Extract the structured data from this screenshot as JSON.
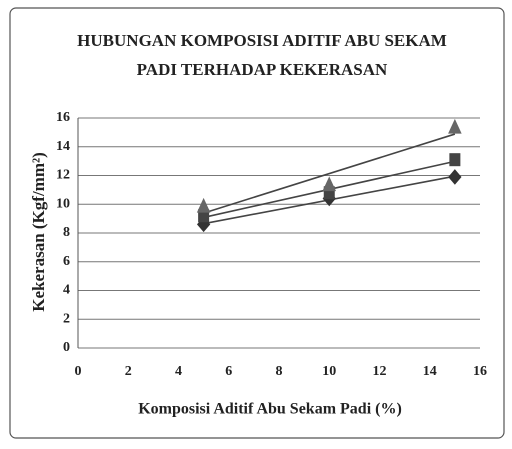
{
  "chart_data": {
    "type": "scatter",
    "title": [
      "HUBUNGAN KOMPOSISI ADITIF ABU SEKAM",
      "PADI TERHADAP KEKERASAN"
    ],
    "x_label": "Komposisi Aditif Abu Sekam Padi (%)",
    "y_label": "Kekerasan (Kgf/mm²)",
    "x": [
      5,
      10,
      15
    ],
    "series": [
      {
        "marker": "diamond",
        "color": "#333333",
        "values": [
          8.6,
          10.4,
          11.9
        ]
      },
      {
        "marker": "square",
        "color": "#444444",
        "values": [
          9.2,
          10.8,
          13.1
        ]
      },
      {
        "marker": "triangle",
        "color": "#666666",
        "values": [
          9.8,
          11.3,
          15.3
        ]
      }
    ],
    "trendline": "linear",
    "xlim": [
      0,
      16
    ],
    "xticks": [
      0,
      2,
      4,
      6,
      8,
      10,
      12,
      14,
      16
    ],
    "ylim": [
      0,
      16
    ],
    "yticks": [
      0,
      2,
      4,
      6,
      8,
      10,
      12,
      14,
      16
    ],
    "grid": true
  }
}
